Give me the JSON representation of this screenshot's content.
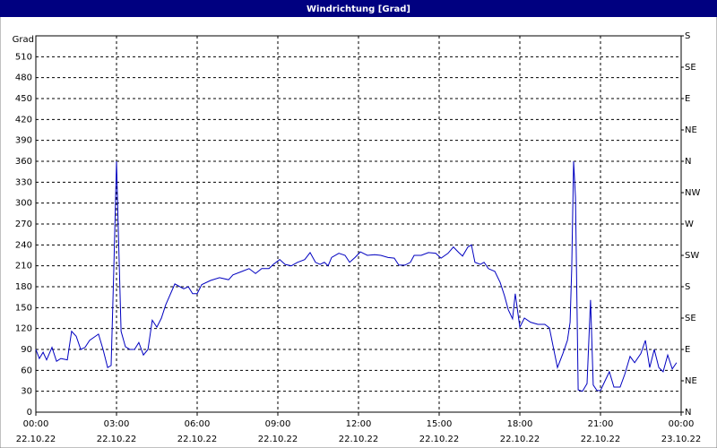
{
  "chart_data": {
    "type": "line",
    "title": "Windrichtung [Grad]",
    "y_label": "Grad",
    "xlim": [
      0,
      24
    ],
    "xticks": [
      {
        "value": 0,
        "label": "00:00"
      },
      {
        "value": 3,
        "label": "03:00"
      },
      {
        "value": 6,
        "label": "06:00"
      },
      {
        "value": 9,
        "label": "09:00"
      },
      {
        "value": 12,
        "label": "12:00"
      },
      {
        "value": 15,
        "label": "15:00"
      },
      {
        "value": 18,
        "label": "18:00"
      },
      {
        "value": 21,
        "label": "21:00"
      },
      {
        "value": 24,
        "label": "00:00"
      }
    ],
    "xtick_dates": [
      "22.10.22",
      "22.10.22",
      "22.10.22",
      "22.10.22",
      "22.10.22",
      "22.10.22",
      "22.10.22",
      "22.10.22",
      "23.10.22"
    ],
    "ylim": [
      0,
      540
    ],
    "yticks": [
      0,
      30,
      60,
      90,
      120,
      150,
      180,
      210,
      240,
      270,
      300,
      330,
      360,
      390,
      420,
      450,
      480,
      510
    ],
    "y2lim": [
      0,
      540
    ],
    "y2ticks": [
      {
        "value": 0,
        "label": "N"
      },
      {
        "value": 45,
        "label": "NE"
      },
      {
        "value": 90,
        "label": "E"
      },
      {
        "value": 135,
        "label": "SE"
      },
      {
        "value": 180,
        "label": "S"
      },
      {
        "value": 225,
        "label": "SW"
      },
      {
        "value": 270,
        "label": "W"
      },
      {
        "value": 315,
        "label": "NW"
      },
      {
        "value": 360,
        "label": "N"
      },
      {
        "value": 405,
        "label": "NE"
      },
      {
        "value": 450,
        "label": "E"
      },
      {
        "value": 495,
        "label": "SE"
      },
      {
        "value": 540,
        "label": "S"
      }
    ],
    "grid": true,
    "color": "#0000c0",
    "x": [
      0,
      0.13,
      0.27,
      0.4,
      0.6,
      0.77,
      0.93,
      1.17,
      1.33,
      1.5,
      1.67,
      1.83,
      2,
      2.33,
      2.5,
      2.67,
      2.8,
      2.9,
      3,
      3.07,
      3.17,
      3.33,
      3.5,
      3.67,
      3.83,
      4,
      4.17,
      4.33,
      4.5,
      4.67,
      4.83,
      5.17,
      5.5,
      5.67,
      5.83,
      6,
      6.17,
      6.5,
      6.83,
      7.17,
      7.33,
      7.67,
      7.93,
      8.17,
      8.4,
      8.67,
      8.83,
      9.07,
      9.27,
      9.5,
      9.73,
      10,
      10.2,
      10.4,
      10.57,
      10.73,
      10.87,
      11,
      11.27,
      11.5,
      11.67,
      11.87,
      12.07,
      12.33,
      12.6,
      12.83,
      13.1,
      13.33,
      13.5,
      13.73,
      13.93,
      14.07,
      14.33,
      14.6,
      14.87,
      15.07,
      15.33,
      15.53,
      15.73,
      15.87,
      16.07,
      16.2,
      16.33,
      16.53,
      16.67,
      16.83,
      17.07,
      17.27,
      17.43,
      17.57,
      17.73,
      17.83,
      18,
      18.17,
      18.4,
      18.67,
      18.93,
      19.1,
      19.23,
      19.4,
      19.6,
      19.77,
      19.87,
      19.93,
      20,
      20.07,
      20.17,
      20.33,
      20.5,
      20.63,
      20.73,
      20.87,
      21,
      21.17,
      21.33,
      21.5,
      21.73,
      21.9,
      22.1,
      22.27,
      22.5,
      22.67,
      22.83,
      23,
      23.17,
      23.33,
      23.5,
      23.67,
      23.83
    ],
    "values": [
      90,
      77,
      86,
      75,
      93,
      73,
      77,
      75,
      116,
      109,
      90,
      93,
      103,
      112,
      90,
      64,
      67,
      206,
      360,
      257,
      116,
      94,
      90,
      90,
      100,
      82,
      90,
      132,
      122,
      135,
      154,
      184,
      177,
      180,
      170,
      170,
      183,
      189,
      193,
      190,
      197,
      202,
      206,
      199,
      206,
      206,
      212,
      219,
      212,
      210,
      215,
      219,
      229,
      215,
      212,
      215,
      210,
      222,
      228,
      225,
      215,
      222,
      230,
      225,
      226,
      225,
      222,
      221,
      211,
      211,
      215,
      225,
      225,
      229,
      228,
      221,
      228,
      237,
      229,
      224,
      237,
      240,
      215,
      212,
      215,
      206,
      202,
      186,
      167,
      147,
      134,
      170,
      122,
      135,
      129,
      126,
      126,
      121,
      96,
      64,
      84,
      103,
      129,
      206,
      360,
      308,
      32,
      30,
      41,
      161,
      39,
      31,
      31,
      45,
      58,
      36,
      36,
      54,
      80,
      71,
      84,
      103,
      64,
      90,
      64,
      58,
      82,
      62,
      71
    ]
  }
}
